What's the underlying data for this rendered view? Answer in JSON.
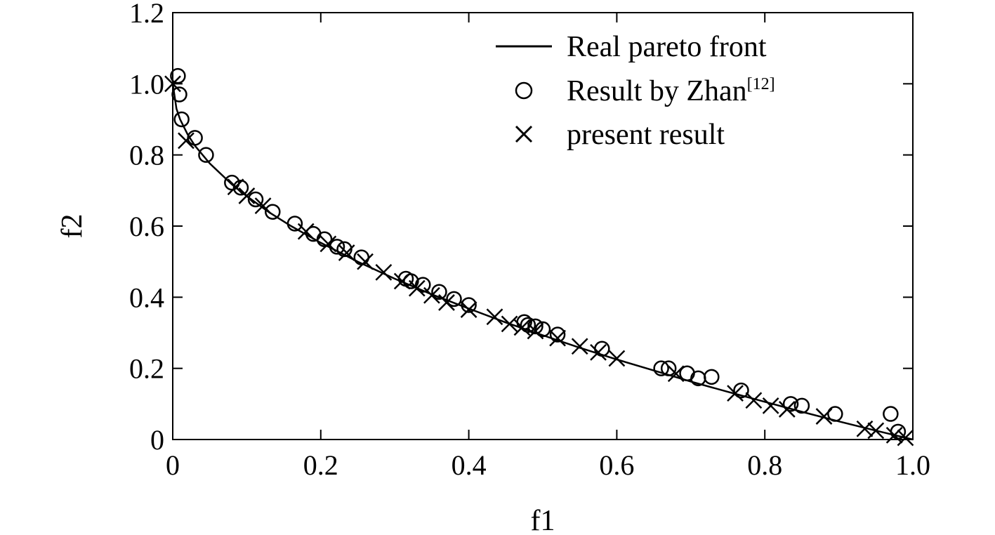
{
  "chart_data": {
    "type": "scatter",
    "title": "",
    "xlabel": "f1",
    "ylabel": "f2",
    "xlim": [
      0,
      1.0
    ],
    "ylim": [
      0,
      1.2
    ],
    "grid": false,
    "legend_position": "top-right",
    "x_ticks": [
      {
        "value": 0,
        "label": "0"
      },
      {
        "value": 0.2,
        "label": "0.2"
      },
      {
        "value": 0.4,
        "label": "0.4"
      },
      {
        "value": 0.6,
        "label": "0.6"
      },
      {
        "value": 0.8,
        "label": "0.8"
      },
      {
        "value": 1.0,
        "label": "1.0"
      }
    ],
    "y_ticks": [
      {
        "value": 0,
        "label": "0"
      },
      {
        "value": 0.2,
        "label": "0.2"
      },
      {
        "value": 0.4,
        "label": "0.4"
      },
      {
        "value": 0.6,
        "label": "0.6"
      },
      {
        "value": 0.8,
        "label": "0.8"
      },
      {
        "value": 1.0,
        "label": "1.0"
      },
      {
        "value": 1.2,
        "label": "1.2"
      }
    ],
    "series": [
      {
        "name": "Real pareto front",
        "kind": "line",
        "points": [
          [
            0.0,
            1.0
          ],
          [
            0.005,
            0.93
          ],
          [
            0.01,
            0.9
          ],
          [
            0.02,
            0.858
          ],
          [
            0.03,
            0.826
          ],
          [
            0.05,
            0.776
          ],
          [
            0.08,
            0.717
          ],
          [
            0.1,
            0.684
          ],
          [
            0.13,
            0.639
          ],
          [
            0.16,
            0.6
          ],
          [
            0.2,
            0.553
          ],
          [
            0.25,
            0.5
          ],
          [
            0.3,
            0.452
          ],
          [
            0.35,
            0.408
          ],
          [
            0.4,
            0.368
          ],
          [
            0.45,
            0.329
          ],
          [
            0.5,
            0.293
          ],
          [
            0.55,
            0.258
          ],
          [
            0.6,
            0.225
          ],
          [
            0.65,
            0.194
          ],
          [
            0.7,
            0.163
          ],
          [
            0.75,
            0.134
          ],
          [
            0.8,
            0.106
          ],
          [
            0.85,
            0.078
          ],
          [
            0.9,
            0.051
          ],
          [
            0.95,
            0.025
          ],
          [
            1.0,
            0.0
          ]
        ]
      },
      {
        "name": "Result by Zhan",
        "name_superscript": "[12]",
        "kind": "circle",
        "points": [
          [
            0.007,
            1.022
          ],
          [
            0.009,
            0.97
          ],
          [
            0.012,
            0.9
          ],
          [
            0.03,
            0.848
          ],
          [
            0.045,
            0.8
          ],
          [
            0.08,
            0.722
          ],
          [
            0.092,
            0.708
          ],
          [
            0.112,
            0.675
          ],
          [
            0.135,
            0.64
          ],
          [
            0.165,
            0.607
          ],
          [
            0.19,
            0.578
          ],
          [
            0.205,
            0.563
          ],
          [
            0.222,
            0.542
          ],
          [
            0.232,
            0.535
          ],
          [
            0.255,
            0.512
          ],
          [
            0.315,
            0.452
          ],
          [
            0.322,
            0.445
          ],
          [
            0.338,
            0.435
          ],
          [
            0.36,
            0.415
          ],
          [
            0.38,
            0.395
          ],
          [
            0.4,
            0.378
          ],
          [
            0.475,
            0.33
          ],
          [
            0.48,
            0.322
          ],
          [
            0.49,
            0.318
          ],
          [
            0.5,
            0.31
          ],
          [
            0.52,
            0.295
          ],
          [
            0.58,
            0.255
          ],
          [
            0.66,
            0.2
          ],
          [
            0.67,
            0.2
          ],
          [
            0.695,
            0.186
          ],
          [
            0.71,
            0.172
          ],
          [
            0.728,
            0.176
          ],
          [
            0.768,
            0.138
          ],
          [
            0.835,
            0.1
          ],
          [
            0.85,
            0.095
          ],
          [
            0.895,
            0.072
          ],
          [
            0.97,
            0.072
          ],
          [
            0.98,
            0.022
          ]
        ]
      },
      {
        "name": "present result",
        "kind": "cross",
        "points": [
          [
            0.0,
            1.0
          ],
          [
            0.018,
            0.84
          ],
          [
            0.085,
            0.71
          ],
          [
            0.1,
            0.685
          ],
          [
            0.122,
            0.657
          ],
          [
            0.18,
            0.585
          ],
          [
            0.21,
            0.55
          ],
          [
            0.235,
            0.525
          ],
          [
            0.26,
            0.5
          ],
          [
            0.285,
            0.47
          ],
          [
            0.31,
            0.445
          ],
          [
            0.33,
            0.425
          ],
          [
            0.35,
            0.405
          ],
          [
            0.37,
            0.385
          ],
          [
            0.4,
            0.365
          ],
          [
            0.435,
            0.345
          ],
          [
            0.455,
            0.325
          ],
          [
            0.472,
            0.315
          ],
          [
            0.49,
            0.305
          ],
          [
            0.52,
            0.285
          ],
          [
            0.55,
            0.262
          ],
          [
            0.575,
            0.245
          ],
          [
            0.6,
            0.228
          ],
          [
            0.68,
            0.185
          ],
          [
            0.76,
            0.13
          ],
          [
            0.785,
            0.11
          ],
          [
            0.808,
            0.095
          ],
          [
            0.83,
            0.085
          ],
          [
            0.88,
            0.065
          ],
          [
            0.935,
            0.03
          ],
          [
            0.95,
            0.025
          ],
          [
            0.975,
            0.012
          ],
          [
            0.99,
            0.005
          ]
        ]
      }
    ]
  }
}
